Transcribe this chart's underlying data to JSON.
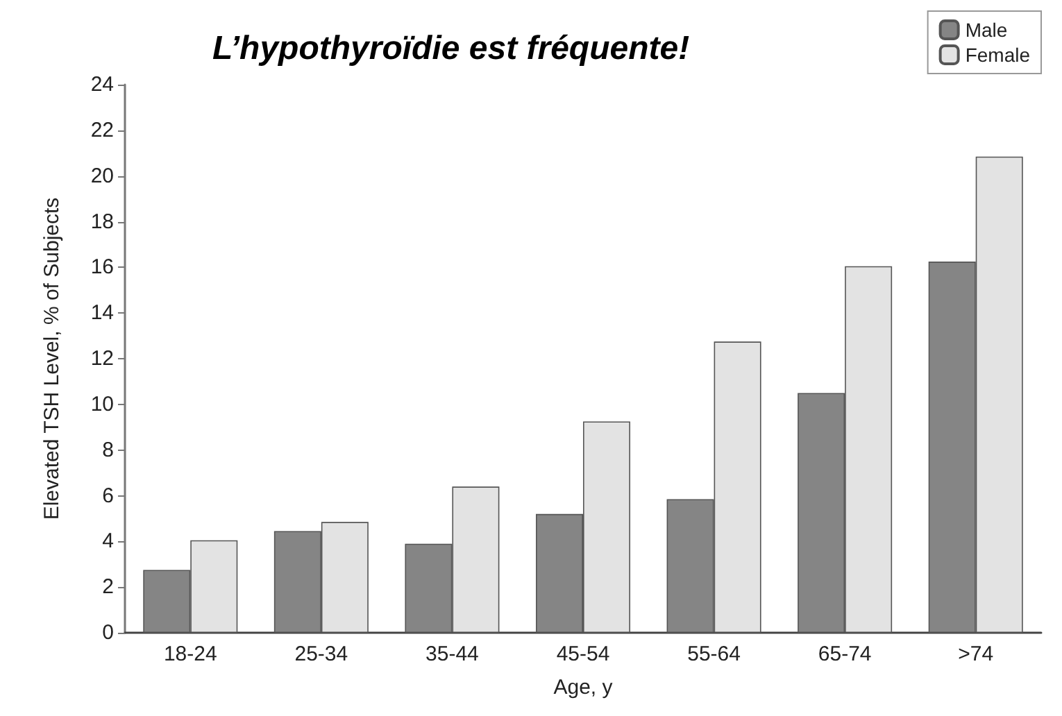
{
  "chart_data": {
    "type": "bar",
    "title": "L’hypothyroïdie est fréquente!",
    "xlabel": "Age, y",
    "ylabel": "Elevated TSH Level, % of Subjects",
    "categories": [
      "18-24",
      "25-34",
      "35-44",
      "45-54",
      "55-64",
      "65-74",
      ">74"
    ],
    "series": [
      {
        "name": "Male",
        "color": "#858585",
        "values": [
          2.75,
          4.45,
          3.9,
          5.2,
          5.85,
          10.5,
          16.25
        ]
      },
      {
        "name": "Female",
        "color": "#e3e3e3",
        "values": [
          4.05,
          4.85,
          6.4,
          9.25,
          12.75,
          16.05,
          20.85
        ]
      }
    ],
    "ylim": [
      0,
      24
    ],
    "yticks": [
      0,
      2,
      4,
      6,
      8,
      10,
      12,
      14,
      16,
      18,
      20,
      22,
      24
    ],
    "grid": false,
    "legend": "top right"
  }
}
